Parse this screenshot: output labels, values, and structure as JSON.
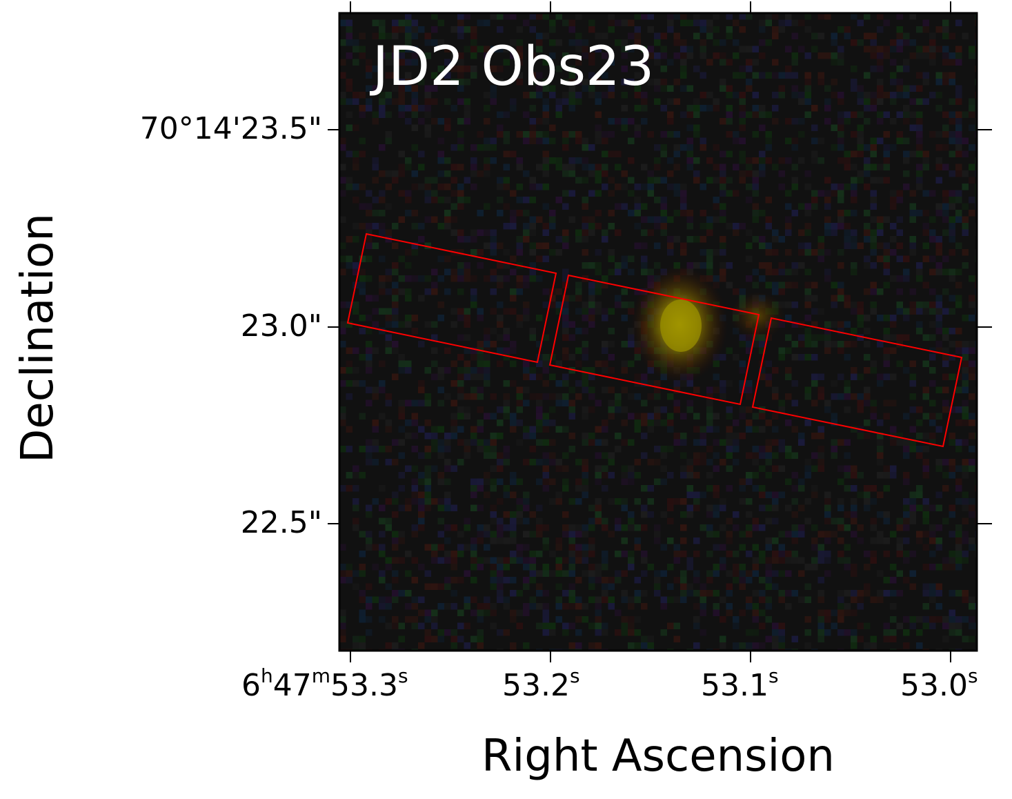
{
  "figure": {
    "title": "JD2 Obs23",
    "xlabel": "Right Ascension",
    "ylabel": "Declination",
    "ra_ticks": [
      {
        "h": "6",
        "hu": "h",
        "m": "47",
        "mu": "m",
        "s": "53.3",
        "su": "s"
      },
      {
        "s": "53.2",
        "su": "s"
      },
      {
        "s": "53.1",
        "su": "s"
      },
      {
        "s": "53.0",
        "su": "s"
      }
    ],
    "dec_ticks": [
      "70°14'23.5\"",
      "23.0\"",
      "22.5\""
    ],
    "colors": {
      "background": "#111111",
      "slit_outline": "#ff0000",
      "source": "#b3a000",
      "title_text": "#ffffff"
    }
  }
}
